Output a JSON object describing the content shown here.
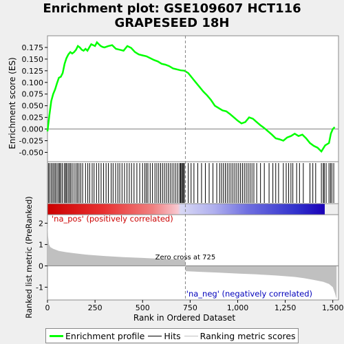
{
  "title_line1": "Enrichment plot: GSE109607 HCT116",
  "title_line2": "GRAPESEED 18H",
  "legend": [
    {
      "label": "Enrichment profile",
      "color": "#00ff00"
    },
    {
      "label": "Hits",
      "color": "#000000"
    },
    {
      "label": "Ranking metric scores",
      "color": "#c0c0c0"
    }
  ],
  "chart_data": [
    {
      "type": "line",
      "ylabel": "Enrichment score (ES)",
      "xlim": [
        0,
        1530
      ],
      "ylim": [
        -0.07,
        0.2
      ],
      "yticks": [
        -0.05,
        -0.025,
        0.0,
        0.025,
        0.05,
        0.075,
        0.1,
        0.125,
        0.15,
        0.175
      ],
      "ytick_labels": [
        "-0.050",
        "-0.025",
        "0.000",
        "0.025",
        "0.050",
        "0.075",
        "0.100",
        "0.125",
        "0.150",
        "0.175"
      ],
      "series": [
        {
          "color": "#00ff00",
          "x": [
            0,
            10,
            20,
            30,
            40,
            50,
            60,
            70,
            80,
            90,
            100,
            110,
            120,
            130,
            140,
            150,
            160,
            170,
            180,
            190,
            200,
            210,
            220,
            230,
            240,
            250,
            260,
            270,
            280,
            290,
            300,
            320,
            340,
            360,
            380,
            400,
            420,
            440,
            460,
            480,
            500,
            520,
            540,
            560,
            580,
            600,
            620,
            640,
            660,
            680,
            700,
            720,
            740,
            760,
            780,
            800,
            820,
            840,
            860,
            880,
            900,
            920,
            940,
            960,
            980,
            1000,
            1020,
            1040,
            1060,
            1080,
            1100,
            1120,
            1140,
            1160,
            1180,
            1200,
            1220,
            1240,
            1260,
            1280,
            1300,
            1320,
            1340,
            1360,
            1380,
            1400,
            1420,
            1440,
            1460,
            1480,
            1490,
            1500,
            1510
          ],
          "values": [
            -0.005,
            0.03,
            0.06,
            0.075,
            0.085,
            0.098,
            0.11,
            0.112,
            0.12,
            0.14,
            0.152,
            0.16,
            0.165,
            0.162,
            0.165,
            0.17,
            0.178,
            0.175,
            0.17,
            0.168,
            0.172,
            0.168,
            0.175,
            0.182,
            0.18,
            0.178,
            0.186,
            0.182,
            0.178,
            0.176,
            0.175,
            0.178,
            0.18,
            0.172,
            0.17,
            0.168,
            0.178,
            0.174,
            0.165,
            0.16,
            0.158,
            0.156,
            0.152,
            0.148,
            0.145,
            0.14,
            0.138,
            0.135,
            0.13,
            0.128,
            0.126,
            0.125,
            0.12,
            0.11,
            0.1,
            0.09,
            0.08,
            0.072,
            0.062,
            0.05,
            0.045,
            0.04,
            0.038,
            0.032,
            0.025,
            0.018,
            0.012,
            0.015,
            0.025,
            0.022,
            0.015,
            0.008,
            0.002,
            -0.005,
            -0.012,
            -0.02,
            -0.022,
            -0.025,
            -0.018,
            -0.015,
            -0.01,
            -0.015,
            -0.012,
            -0.02,
            -0.03,
            -0.036,
            -0.04,
            -0.048,
            -0.035,
            -0.03,
            -0.01,
            0.0,
            0.004
          ]
        }
      ]
    },
    {
      "type": "scatter",
      "description_of": "hits",
      "hit_ranks": [
        5,
        12,
        20,
        28,
        35,
        42,
        50,
        58,
        64,
        70,
        78,
        88,
        95,
        100,
        108,
        115,
        122,
        130,
        140,
        150,
        158,
        166,
        175,
        185,
        200,
        212,
        222,
        235,
        245,
        258,
        270,
        282,
        295,
        308,
        320,
        335,
        345,
        358,
        370,
        380,
        392,
        405,
        418,
        430,
        442,
        455,
        470,
        485,
        500,
        512,
        520,
        528,
        540,
        552,
        565,
        575,
        585,
        595,
        605,
        615,
        625,
        635,
        645,
        655,
        665,
        675,
        685,
        695,
        700,
        705,
        710,
        715,
        720,
        740,
        755,
        770,
        790,
        810,
        830,
        850,
        870,
        890,
        905,
        915,
        925,
        935,
        945,
        955,
        965,
        975,
        985,
        995,
        1005,
        1015,
        1025,
        1035,
        1045,
        1055,
        1065,
        1075,
        1085,
        1100,
        1120,
        1140,
        1165,
        1185,
        1200,
        1215,
        1240,
        1255,
        1268,
        1280,
        1290,
        1310,
        1325,
        1345,
        1380,
        1395,
        1410,
        1440,
        1450,
        1455,
        1465,
        1480,
        1488,
        1495,
        1505
      ]
    },
    {
      "type": "area",
      "ylabel": "Ranked list metric (PreRanked)",
      "xlabel": "Rank in Ordered Dataset",
      "xlim": [
        0,
        1530
      ],
      "ylim": [
        -1.6,
        2.4
      ],
      "xticks": [
        0,
        250,
        500,
        750,
        1000,
        1250,
        1500
      ],
      "xtick_labels": [
        "0",
        "250",
        "500",
        "750",
        "1,000",
        "1,250",
        "1,500"
      ],
      "yticks": [
        -1,
        0,
        1,
        2
      ],
      "ytick_labels": [
        "-1",
        "0",
        "1",
        "2"
      ],
      "series": [
        {
          "color": "#c0c0c0",
          "x": [
            0,
            3,
            8,
            15,
            30,
            60,
            100,
            150,
            200,
            300,
            400,
            500,
            600,
            700,
            724,
            726,
            800,
            900,
            1000,
            1100,
            1200,
            1300,
            1350,
            1400,
            1450,
            1480,
            1500,
            1510,
            1520
          ],
          "values": [
            2.1,
            1.4,
            1.0,
            0.88,
            0.8,
            0.7,
            0.64,
            0.58,
            0.53,
            0.46,
            0.41,
            0.37,
            0.33,
            0.3,
            0.29,
            -0.25,
            -0.28,
            -0.32,
            -0.36,
            -0.4,
            -0.45,
            -0.52,
            -0.58,
            -0.66,
            -0.75,
            -0.85,
            -1.0,
            -1.25,
            -1.55
          ]
        }
      ],
      "annotations": [
        {
          "text": "'na_pos' (positively correlated)",
          "color": "#cc0000"
        },
        {
          "text": "Zero cross at 725",
          "color": "#000000",
          "x": 725
        },
        {
          "text": "'na_neg' (negatively correlated)",
          "color": "#0000bb"
        }
      ]
    }
  ]
}
